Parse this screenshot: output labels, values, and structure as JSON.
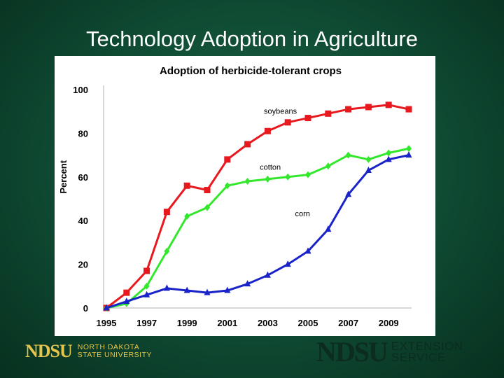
{
  "slide": {
    "title": "Technology Adoption in Agriculture"
  },
  "logos": {
    "left": {
      "mark": "NDSU",
      "line1": "NORTH DAKOTA",
      "line2": "STATE UNIVERSITY"
    },
    "right": {
      "mark": "NDSU",
      "line1": "EXTENSION",
      "line2": "SERVICE"
    }
  },
  "colors": {
    "soybeans": "#e8191e",
    "cotton": "#33e82c",
    "corn": "#1a23c8"
  },
  "chart_data": {
    "type": "line",
    "title": "Adoption of herbicide-tolerant crops",
    "xlabel": "",
    "ylabel": "Percent",
    "x": [
      1996,
      1997,
      1998,
      1999,
      2000,
      2001,
      2002,
      2003,
      2004,
      2005,
      2006,
      2007,
      2008,
      2009,
      2010,
      2011
    ],
    "x_tick_labels": [
      "1995",
      "1997",
      "1999",
      "2001",
      "2003",
      "2005",
      "2007",
      "2009"
    ],
    "y_ticks": [
      0,
      20,
      40,
      60,
      80,
      100
    ],
    "ylim": [
      0,
      100
    ],
    "grid": false,
    "series": [
      {
        "name": "soybeans",
        "marker": "square",
        "values": [
          0,
          7,
          17,
          44,
          56,
          54,
          68,
          75,
          81,
          85,
          87,
          89,
          91,
          92,
          93,
          91
        ]
      },
      {
        "name": "cotton",
        "marker": "diamond",
        "values": [
          0,
          2,
          10,
          26,
          42,
          46,
          56,
          58,
          59,
          60,
          61,
          65,
          70,
          68,
          71,
          73
        ]
      },
      {
        "name": "corn",
        "marker": "triangle",
        "values": [
          0,
          3,
          6,
          9,
          8,
          7,
          8,
          11,
          15,
          20,
          26,
          36,
          52,
          63,
          68,
          70
        ]
      }
    ]
  }
}
